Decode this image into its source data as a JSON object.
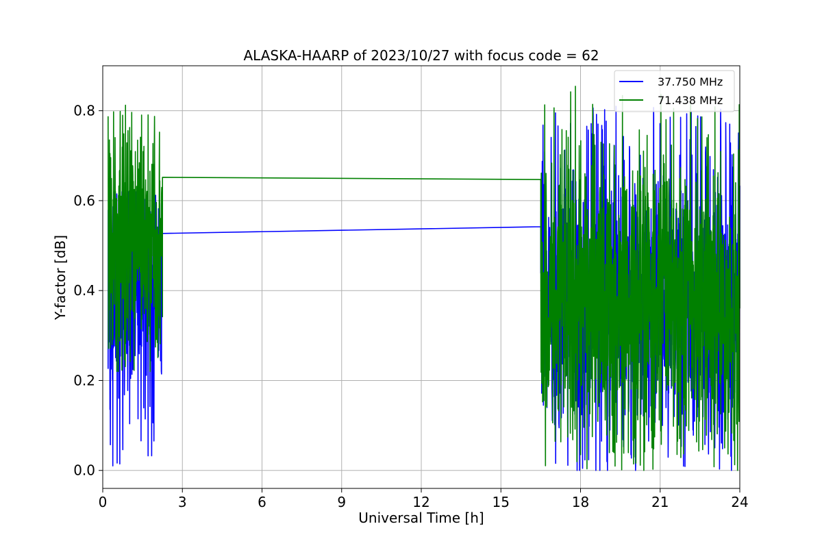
{
  "chart_data": {
    "type": "line",
    "title": "ALASKA-HAARP of 2023/10/27 with focus code = 62",
    "xlabel": "Universal Time [h]",
    "ylabel": "Y-factor [dB]",
    "xlim": [
      0,
      24
    ],
    "ylim": [
      -0.04,
      0.9
    ],
    "xticks": [
      0,
      3,
      6,
      9,
      12,
      15,
      18,
      21,
      24
    ],
    "xtick_labels": [
      "0",
      "3",
      "6",
      "9",
      "12",
      "15",
      "18",
      "21",
      "24"
    ],
    "yticks": [
      0.0,
      0.2,
      0.4,
      0.6,
      0.8
    ],
    "ytick_labels": [
      "0.0",
      "0.2",
      "0.4",
      "0.6",
      "0.8"
    ],
    "grid": true,
    "legend_position": "top-right",
    "series": [
      {
        "name": "37.750 MHz",
        "color": "#0000ff",
        "segments": [
          {
            "x_range": [
              0.2,
              2.25
            ],
            "center": 0.4,
            "spread": 0.22,
            "min": 0.01,
            "max": 0.62
          },
          {
            "x_range": [
              16.5,
              24.0
            ],
            "center": 0.38,
            "spread": 0.25,
            "min": 0.0,
            "max": 0.81
          }
        ],
        "bridge": {
          "x": [
            2.25,
            16.5
          ],
          "y": [
            0.527,
            0.542
          ]
        }
      },
      {
        "name": "71.438 MHz",
        "color": "#008000",
        "segments": [
          {
            "x_range": [
              0.2,
              2.25
            ],
            "center": 0.5,
            "spread": 0.2,
            "min": 0.22,
            "max": 0.825
          },
          {
            "x_range": [
              16.5,
              24.0
            ],
            "center": 0.38,
            "spread": 0.25,
            "min": 0.0,
            "max": 0.855
          }
        ],
        "bridge": {
          "x": [
            2.25,
            16.5
          ],
          "y": [
            0.652,
            0.647
          ]
        }
      }
    ]
  }
}
